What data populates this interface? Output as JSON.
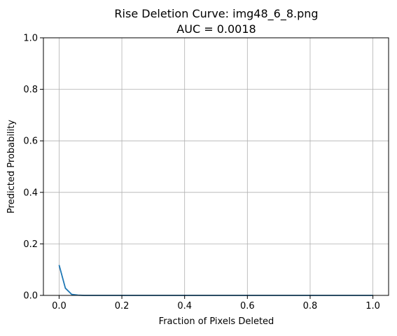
{
  "chart_data": {
    "type": "line",
    "title_line1": "Rise Deletion Curve: img48_6_8.png",
    "title_line2": "AUC = 0.0018",
    "xlabel": "Fraction of Pixels Deleted",
    "ylabel": "Predicted Probability",
    "xlim": [
      -0.05,
      1.05
    ],
    "ylim": [
      0.0,
      1.0
    ],
    "x_ticks": [
      0.0,
      0.2,
      0.4,
      0.6,
      0.8,
      1.0
    ],
    "x_tick_labels": [
      "0.0",
      "0.2",
      "0.4",
      "0.6",
      "0.8",
      "1.0"
    ],
    "y_ticks": [
      0.0,
      0.2,
      0.4,
      0.6,
      0.8,
      1.0
    ],
    "y_tick_labels": [
      "0.0",
      "0.2",
      "0.4",
      "0.6",
      "0.8",
      "1.0"
    ],
    "grid": true,
    "colors": {
      "line": "#1f77b4",
      "grid": "#b0b0b0",
      "axes": "#000000"
    },
    "series": [
      {
        "x": [
          0.0,
          0.02,
          0.04,
          0.06,
          0.08,
          0.1,
          0.2,
          0.3,
          0.4,
          0.5,
          0.6,
          0.7,
          0.8,
          0.9,
          1.0
        ],
        "values": [
          0.118,
          0.028,
          0.004,
          0.001,
          0.0,
          0.0,
          0.0,
          0.0,
          0.0,
          0.0,
          0.0,
          0.0,
          0.0,
          0.0,
          0.0
        ]
      }
    ]
  }
}
